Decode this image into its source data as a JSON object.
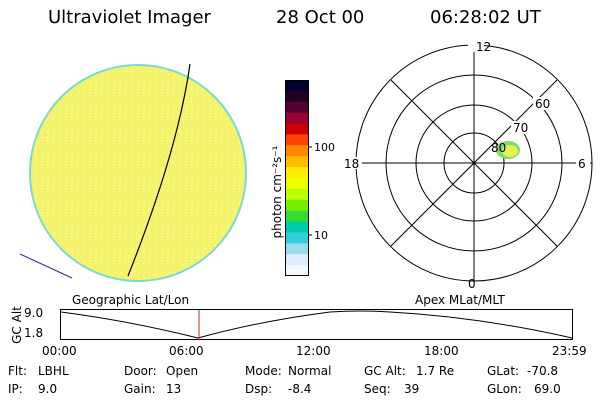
{
  "header": {
    "instrument": "Ultraviolet Imager",
    "date": "28 Oct 00",
    "time": "06:28:02 UT"
  },
  "colorbar": {
    "unit_label": "photon cm⁻²s⁻¹",
    "tick_labels": [
      "100",
      "10"
    ],
    "colors": [
      "#000033",
      "#220022",
      "#550033",
      "#990033",
      "#cc0000",
      "#ff4400",
      "#ff8800",
      "#ffbb00",
      "#ffee00",
      "#eeff00",
      "#bbff00",
      "#77ee00",
      "#33dd33",
      "#00ccaa",
      "#33ccdd",
      "#99ddee",
      "#ddeeff",
      "#f4f8ff"
    ]
  },
  "polar_plot": {
    "labels": {
      "top": "12",
      "right": "6",
      "bottom": "0",
      "left": "18",
      "lat_60": "60",
      "lat_70": "70",
      "lat_80": "80"
    }
  },
  "timeline": {
    "left_title": "Geographic Lat/Lon",
    "right_title": "Apex MLat/MLT",
    "y_axis_title": "GC Alt",
    "y_top": "9.0",
    "y_bottom": "1.8",
    "x_ticks": [
      "00:00",
      "06:00",
      "12:00",
      "18:00",
      "23:59"
    ]
  },
  "info": {
    "filter_label": "Flt:",
    "filter_value": "LBHL",
    "ip_label": "IP:",
    "ip_value": "9.0",
    "door_label": "Door:",
    "door_value": "Open",
    "gain_label": "Gain:",
    "gain_value": "13",
    "mode_label": "Mode:",
    "mode_value": "Normal",
    "dsp_label": "Dsp:",
    "dsp_value": "-8.4",
    "gcalt_label": "GC Alt:",
    "gcalt_value": "1.7 Re",
    "seq_label": "Seq:",
    "seq_value": "39",
    "glat_label": "GLat:",
    "glat_value": "-70.8",
    "glon_label": "GLon:",
    "glon_value": "69.0"
  }
}
